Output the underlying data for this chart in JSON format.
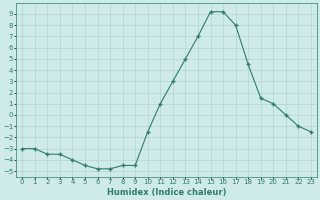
{
  "x": [
    0,
    1,
    2,
    3,
    4,
    5,
    6,
    7,
    8,
    9,
    10,
    11,
    12,
    13,
    14,
    15,
    16,
    17,
    18,
    19,
    20,
    21,
    22,
    23
  ],
  "y": [
    -3.0,
    -3.0,
    -3.5,
    -3.5,
    -4.0,
    -4.5,
    -4.8,
    -4.8,
    -4.5,
    -4.5,
    -1.5,
    1.0,
    3.0,
    5.0,
    7.0,
    9.2,
    9.2,
    8.0,
    4.5,
    1.5,
    1.0,
    0.0,
    -1.0,
    -1.5
  ],
  "line_color": "#2e7d6e",
  "marker": "+",
  "marker_size": 3.5,
  "marker_linewidth": 1.0,
  "bg_color": "#ceeaea",
  "grid_color": "#b0cece",
  "xlabel": "Humidex (Indice chaleur)",
  "xlabel_fontsize": 6,
  "tick_fontsize": 5,
  "ylim": [
    -5.5,
    10.0
  ],
  "xlim": [
    -0.5,
    23.5
  ],
  "yticks": [
    -5,
    -4,
    -3,
    -2,
    -1,
    0,
    1,
    2,
    3,
    4,
    5,
    6,
    7,
    8,
    9
  ],
  "xtick_labels": [
    "0",
    "1",
    "2",
    "3",
    "4",
    "5",
    "6",
    "7",
    "8",
    "9",
    "10",
    "11",
    "12",
    "13",
    "14",
    "15",
    "16",
    "17",
    "18",
    "19",
    "20",
    "21",
    "22",
    "23"
  ],
  "line_width": 0.8,
  "spine_color": "#2e7d6e"
}
